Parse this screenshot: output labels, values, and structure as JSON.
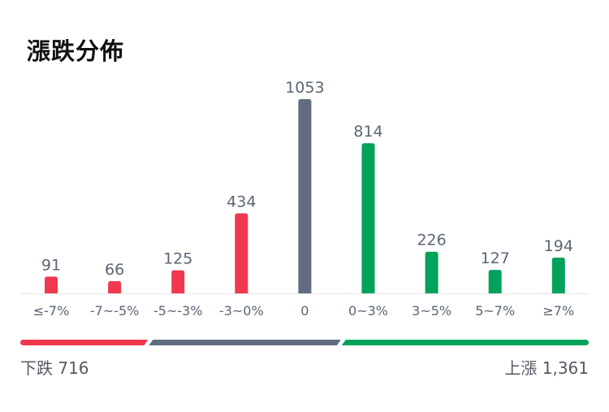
{
  "title": "漲跌分佈",
  "chart_data": {
    "type": "bar",
    "categories": [
      "≤-7%",
      "-7~-5%",
      "-5~-3%",
      "-3~0%",
      "0",
      "0~3%",
      "3~5%",
      "5~7%",
      "≥7%"
    ],
    "values": [
      91,
      66,
      125,
      434,
      1053,
      814,
      226,
      127,
      194
    ],
    "colors": [
      "#f0384f",
      "#f0384f",
      "#f0384f",
      "#f0384f",
      "#616c80",
      "#03a25b",
      "#03a25b",
      "#03a25b",
      "#03a25b"
    ],
    "ylim": [
      0,
      1053
    ],
    "grid": false,
    "legend": "none"
  },
  "summary": {
    "down_label": "下跌 716",
    "up_label": "上漲 1,361",
    "down_count": 716,
    "flat_count": 1053,
    "up_count": 1361,
    "down_color": "#f0384f",
    "flat_color": "#616c80",
    "up_color": "#03a25b"
  },
  "colors": {
    "label": "#5c6575",
    "baseline": "#e6e6e6"
  }
}
